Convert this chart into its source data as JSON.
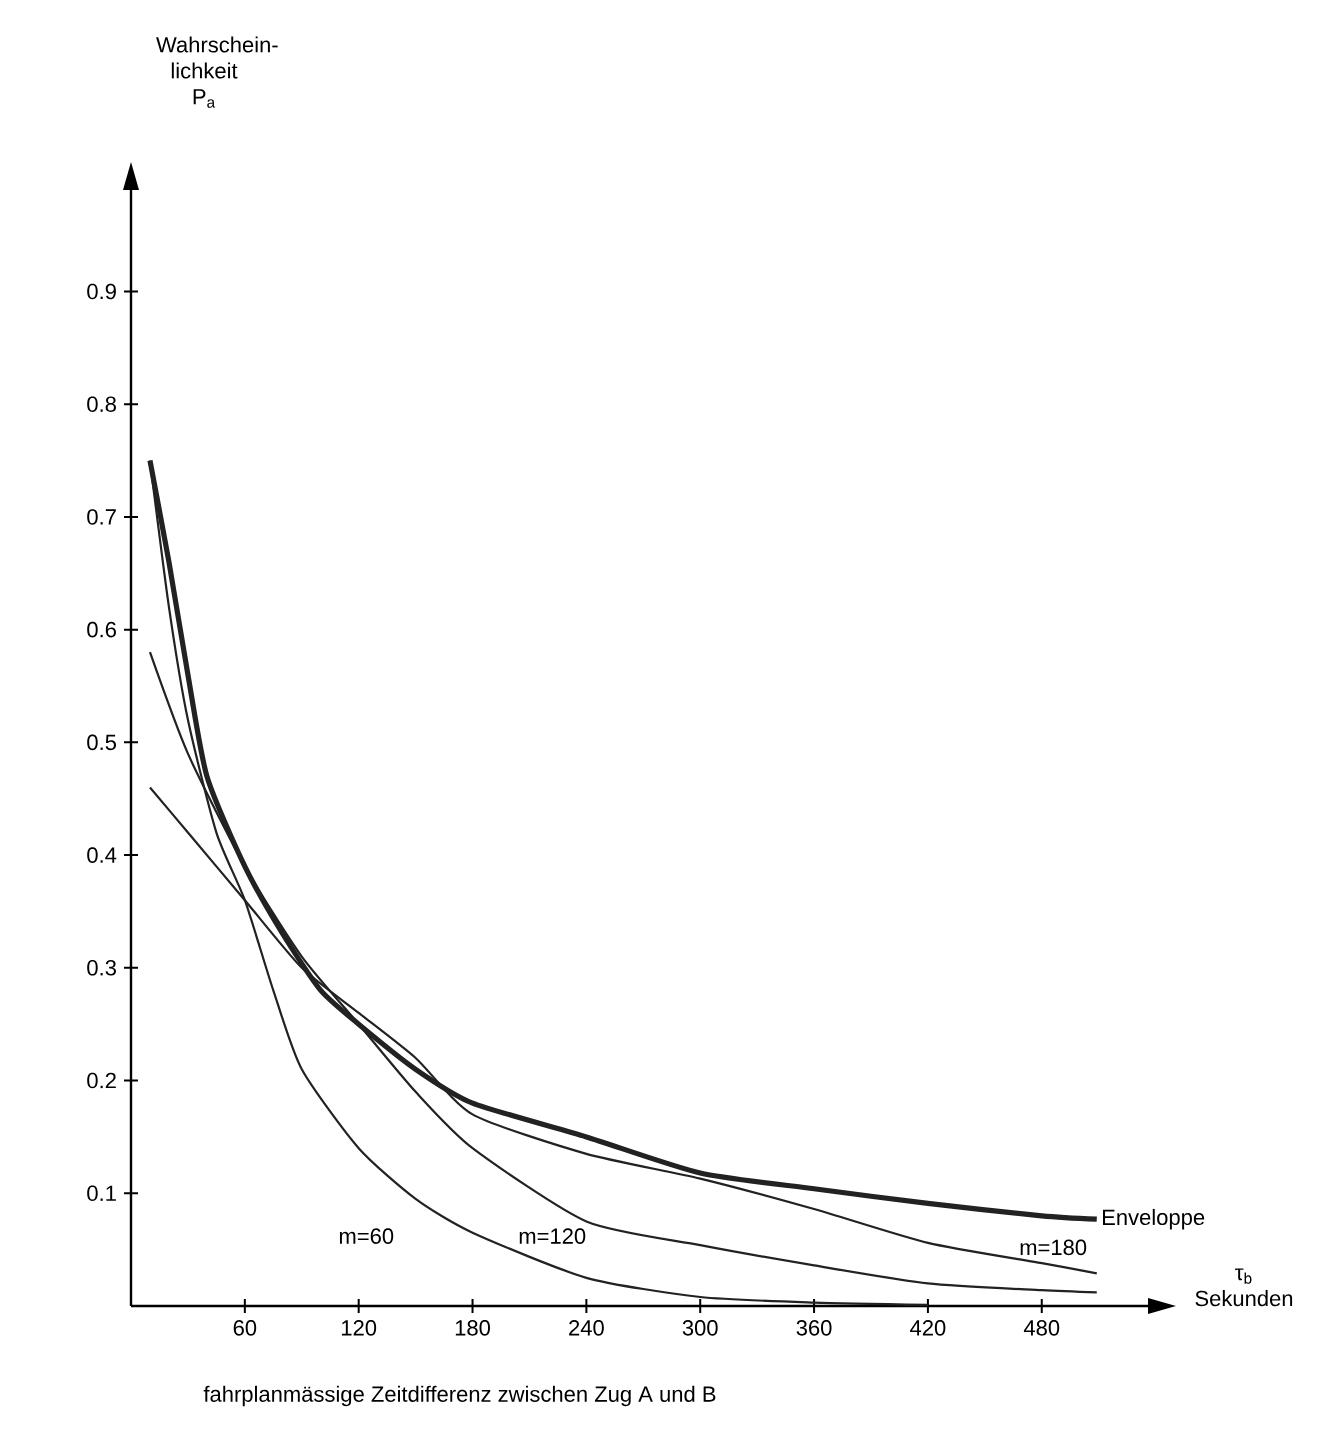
{
  "chart_data": {
    "type": "line",
    "xlabel": "fahrplanmässige Zeitdifferenz zwischen Zug A und B",
    "ylabel": "Wahrschein-lichkeit P$_{a}$",
    "annotations": [
      "τ$_{b}$ Sekunden"
    ],
    "xlim": [
      0,
      536
    ],
    "ylim": [
      0,
      0.99
    ],
    "xticks": [
      60,
      120,
      180,
      240,
      300,
      360,
      420,
      480
    ],
    "yticks": [
      0.1,
      0.2,
      0.3,
      0.4,
      0.5,
      0.6,
      0.7,
      0.8,
      0.9
    ],
    "grid": false,
    "legend": false,
    "marker": "none",
    "line_style": "solid",
    "series": [
      {
        "name": "m=60",
        "color": "#222222",
        "x": [
          10,
          20,
          30,
          45,
          60,
          75,
          90,
          120,
          150,
          180,
          240,
          300,
          360,
          420
        ],
        "values": [
          0.75,
          0.62,
          0.52,
          0.42,
          0.36,
          0.28,
          0.21,
          0.14,
          0.095,
          0.065,
          0.025,
          0.008,
          0.003,
          0.001
        ]
      },
      {
        "name": "m=120",
        "color": "#222222",
        "x": [
          10,
          30,
          60,
          90,
          120,
          150,
          180,
          240,
          300,
          360,
          420,
          480,
          509
        ],
        "values": [
          0.58,
          0.49,
          0.39,
          0.31,
          0.25,
          0.19,
          0.14,
          0.075,
          0.054,
          0.036,
          0.02,
          0.014,
          0.012
        ]
      },
      {
        "name": "m=180",
        "color": "#222222",
        "x": [
          10,
          30,
          60,
          90,
          120,
          150,
          180,
          240,
          300,
          360,
          420,
          480,
          509
        ],
        "values": [
          0.46,
          0.42,
          0.36,
          0.3,
          0.26,
          0.22,
          0.17,
          0.135,
          0.113,
          0.086,
          0.056,
          0.038,
          0.029
        ]
      },
      {
        "name": "Enveloppe",
        "color": "#222222",
        "x": [
          10,
          20,
          30,
          40,
          60,
          80,
          100,
          120,
          150,
          180,
          240,
          300,
          360,
          420,
          480,
          509
        ],
        "values": [
          0.75,
          0.66,
          0.56,
          0.47,
          0.39,
          0.33,
          0.28,
          0.25,
          0.21,
          0.18,
          0.15,
          0.118,
          0.104,
          0.091,
          0.08,
          0.077
        ]
      }
    ]
  }
}
